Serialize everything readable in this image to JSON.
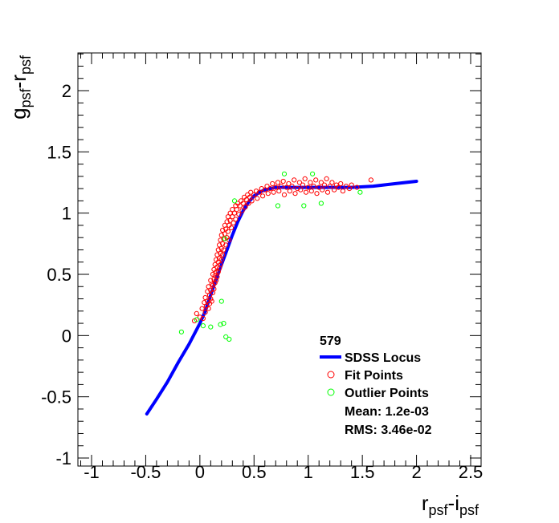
{
  "chart_data": {
    "type": "scatter",
    "title": "",
    "xlabel": {
      "main": "r",
      "sub1": "psf",
      "mid": "-i",
      "sub2": "psf"
    },
    "ylabel": {
      "main": "g",
      "sub1": "psf",
      "mid": "-r",
      "sub2": "psf"
    },
    "xlim": [
      -1.0,
      2.5
    ],
    "ylim": [
      -1.0,
      2.3
    ],
    "x_ticks": [
      -1,
      -0.5,
      0,
      0.5,
      1,
      1.5,
      2,
      2.5
    ],
    "x_tick_labels": [
      "-1",
      "-0.5",
      "0",
      "0.5",
      "1",
      "1.5",
      "2",
      "2.5"
    ],
    "y_ticks": [
      -1,
      -0.5,
      0,
      0.5,
      1,
      1.5,
      2
    ],
    "y_tick_labels": [
      "-1",
      "-0.5",
      "0",
      "0.5",
      "1",
      "1.5",
      "2"
    ],
    "grid": false,
    "legend": {
      "position": "bottom-right",
      "header": "579",
      "entries": [
        {
          "label": "SDSS Locus",
          "kind": "line",
          "color": "#0000ff"
        },
        {
          "label": "Fit Points",
          "kind": "marker",
          "color": "#ff0000"
        },
        {
          "label": "Outlier Points",
          "kind": "marker",
          "color": "#00ff00"
        },
        {
          "label": "Mean: 1.2e-03",
          "kind": "text"
        },
        {
          "label": "RMS: 3.46e-02",
          "kind": "text"
        }
      ]
    },
    "series": [
      {
        "name": "SDSS Locus",
        "kind": "line",
        "color": "#0000ff",
        "points": [
          [
            -0.49,
            -0.64
          ],
          [
            -0.4,
            -0.52
          ],
          [
            -0.3,
            -0.38
          ],
          [
            -0.2,
            -0.22
          ],
          [
            -0.1,
            -0.07
          ],
          [
            0.0,
            0.1
          ],
          [
            0.05,
            0.2
          ],
          [
            0.1,
            0.33
          ],
          [
            0.15,
            0.46
          ],
          [
            0.2,
            0.58
          ],
          [
            0.25,
            0.7
          ],
          [
            0.3,
            0.82
          ],
          [
            0.35,
            0.93
          ],
          [
            0.4,
            1.02
          ],
          [
            0.45,
            1.09
          ],
          [
            0.5,
            1.14
          ],
          [
            0.55,
            1.17
          ],
          [
            0.6,
            1.19
          ],
          [
            0.7,
            1.21
          ],
          [
            0.8,
            1.21
          ],
          [
            1.0,
            1.21
          ],
          [
            1.2,
            1.21
          ],
          [
            1.4,
            1.21
          ],
          [
            1.6,
            1.22
          ],
          [
            1.8,
            1.24
          ],
          [
            2.0,
            1.26
          ]
        ]
      },
      {
        "name": "Fit Points",
        "kind": "scatter",
        "color": "#ff0000",
        "points": [
          [
            -0.05,
            0.12
          ],
          [
            -0.03,
            0.18
          ],
          [
            0.0,
            0.15
          ],
          [
            0.02,
            0.22
          ],
          [
            0.03,
            0.14
          ],
          [
            0.04,
            0.27
          ],
          [
            0.05,
            0.19
          ],
          [
            0.05,
            0.31
          ],
          [
            0.06,
            0.24
          ],
          [
            0.07,
            0.36
          ],
          [
            0.07,
            0.28
          ],
          [
            0.08,
            0.22
          ],
          [
            0.08,
            0.4
          ],
          [
            0.09,
            0.33
          ],
          [
            0.09,
            0.26
          ],
          [
            0.1,
            0.45
          ],
          [
            0.1,
            0.3
          ],
          [
            0.1,
            0.37
          ],
          [
            0.11,
            0.42
          ],
          [
            0.11,
            0.28
          ],
          [
            0.12,
            0.5
          ],
          [
            0.12,
            0.35
          ],
          [
            0.12,
            0.41
          ],
          [
            0.13,
            0.46
          ],
          [
            0.13,
            0.54
          ],
          [
            0.13,
            0.38
          ],
          [
            0.14,
            0.49
          ],
          [
            0.14,
            0.58
          ],
          [
            0.14,
            0.43
          ],
          [
            0.15,
            0.52
          ],
          [
            0.15,
            0.62
          ],
          [
            0.15,
            0.45
          ],
          [
            0.16,
            0.56
          ],
          [
            0.16,
            0.48
          ],
          [
            0.16,
            0.66
          ],
          [
            0.17,
            0.6
          ],
          [
            0.17,
            0.52
          ],
          [
            0.17,
            0.7
          ],
          [
            0.18,
            0.63
          ],
          [
            0.18,
            0.55
          ],
          [
            0.18,
            0.74
          ],
          [
            0.19,
            0.67
          ],
          [
            0.19,
            0.58
          ],
          [
            0.19,
            0.78
          ],
          [
            0.2,
            0.71
          ],
          [
            0.2,
            0.62
          ],
          [
            0.2,
            0.82
          ],
          [
            0.21,
            0.75
          ],
          [
            0.21,
            0.66
          ],
          [
            0.21,
            0.86
          ],
          [
            0.22,
            0.79
          ],
          [
            0.22,
            0.7
          ],
          [
            0.23,
            0.83
          ],
          [
            0.23,
            0.9
          ],
          [
            0.24,
            0.74
          ],
          [
            0.24,
            0.87
          ],
          [
            0.25,
            0.8
          ],
          [
            0.25,
            0.93
          ],
          [
            0.26,
            0.85
          ],
          [
            0.26,
            0.97
          ],
          [
            0.27,
            0.9
          ],
          [
            0.27,
            0.78
          ],
          [
            0.28,
            0.94
          ],
          [
            0.28,
            1.0
          ],
          [
            0.29,
            0.88
          ],
          [
            0.3,
            0.97
          ],
          [
            0.3,
            1.03
          ],
          [
            0.31,
            0.92
          ],
          [
            0.32,
            1.0
          ],
          [
            0.33,
            1.06
          ],
          [
            0.33,
            0.95
          ],
          [
            0.34,
            1.03
          ],
          [
            0.35,
            1.08
          ],
          [
            0.36,
            0.99
          ],
          [
            0.37,
            1.06
          ],
          [
            0.38,
            1.1
          ],
          [
            0.39,
            1.02
          ],
          [
            0.4,
            1.08
          ],
          [
            0.41,
            1.13
          ],
          [
            0.42,
            1.05
          ],
          [
            0.43,
            1.11
          ],
          [
            0.44,
            1.15
          ],
          [
            0.45,
            1.08
          ],
          [
            0.46,
            1.13
          ],
          [
            0.47,
            1.17
          ],
          [
            0.48,
            1.1
          ],
          [
            0.5,
            1.15
          ],
          [
            0.52,
            1.18
          ],
          [
            0.53,
            1.12
          ],
          [
            0.55,
            1.17
          ],
          [
            0.57,
            1.2
          ],
          [
            0.58,
            1.14
          ],
          [
            0.6,
            1.19
          ],
          [
            0.62,
            1.22
          ],
          [
            0.63,
            1.16
          ],
          [
            0.65,
            1.2
          ],
          [
            0.67,
            1.24
          ],
          [
            0.68,
            1.17
          ],
          [
            0.7,
            1.21
          ],
          [
            0.72,
            1.25
          ],
          [
            0.73,
            1.18
          ],
          [
            0.75,
            1.22
          ],
          [
            0.77,
            1.26
          ],
          [
            0.78,
            1.15
          ],
          [
            0.8,
            1.21
          ],
          [
            0.82,
            1.24
          ],
          [
            0.83,
            1.18
          ],
          [
            0.85,
            1.22
          ],
          [
            0.87,
            1.27
          ],
          [
            0.88,
            1.16
          ],
          [
            0.9,
            1.2
          ],
          [
            0.92,
            1.25
          ],
          [
            0.93,
            1.19
          ],
          [
            0.95,
            1.23
          ],
          [
            0.97,
            1.28
          ],
          [
            0.98,
            1.17
          ],
          [
            1.0,
            1.21
          ],
          [
            1.02,
            1.25
          ],
          [
            1.03,
            1.18
          ],
          [
            1.05,
            1.22
          ],
          [
            1.07,
            1.27
          ],
          [
            1.08,
            1.16
          ],
          [
            1.1,
            1.21
          ],
          [
            1.12,
            1.25
          ],
          [
            1.13,
            1.19
          ],
          [
            1.15,
            1.23
          ],
          [
            1.17,
            1.28
          ],
          [
            1.18,
            1.17
          ],
          [
            1.2,
            1.22
          ],
          [
            1.22,
            1.25
          ],
          [
            1.24,
            1.19
          ],
          [
            1.26,
            1.23
          ],
          [
            1.28,
            1.21
          ],
          [
            1.3,
            1.24
          ],
          [
            1.32,
            1.18
          ],
          [
            1.35,
            1.22
          ],
          [
            1.38,
            1.2
          ],
          [
            1.4,
            1.23
          ],
          [
            1.45,
            1.21
          ],
          [
            1.58,
            1.27
          ]
        ]
      },
      {
        "name": "Outlier Points",
        "kind": "scatter",
        "color": "#00ff00",
        "points": [
          [
            -0.17,
            0.03
          ],
          [
            -0.03,
            0.13
          ],
          [
            0.03,
            0.08
          ],
          [
            0.1,
            0.07
          ],
          [
            0.19,
            0.09
          ],
          [
            0.2,
            0.28
          ],
          [
            0.22,
            0.1
          ],
          [
            0.23,
            0.79
          ],
          [
            0.24,
            -0.01
          ],
          [
            0.27,
            -0.03
          ],
          [
            0.32,
            1.1
          ],
          [
            0.72,
            1.06
          ],
          [
            0.78,
            1.32
          ],
          [
            0.96,
            1.06
          ],
          [
            1.04,
            1.32
          ],
          [
            1.12,
            1.08
          ],
          [
            1.48,
            1.17
          ]
        ]
      }
    ]
  }
}
